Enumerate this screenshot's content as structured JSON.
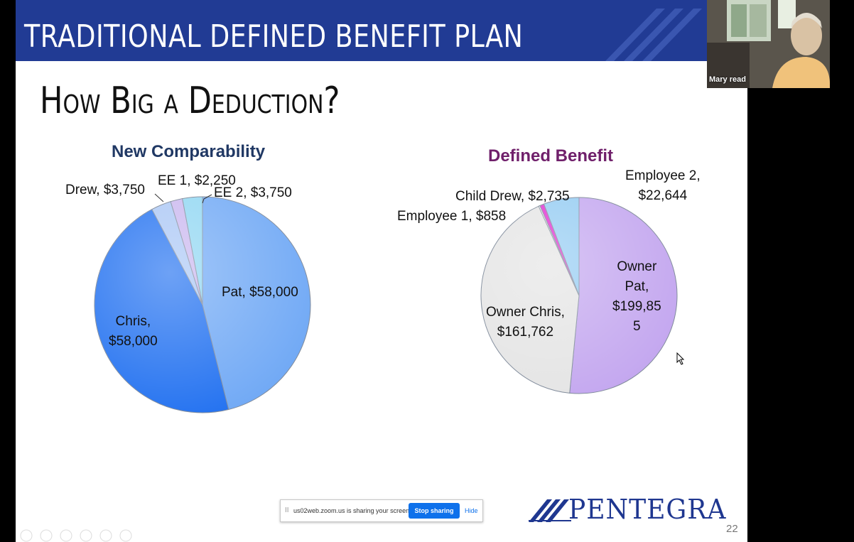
{
  "slide": {
    "title": "TRADITIONAL DEFINED BENEFIT PLAN",
    "subtitle": "How Big a Deduction?",
    "page_number": "22",
    "logo_text": "PENTEGRA"
  },
  "chart_data": [
    {
      "type": "pie",
      "title": "New Comparability",
      "slices": [
        {
          "label": "Pat, $58,000",
          "name": "Pat",
          "value": 58000,
          "color": "#6fa8f5"
        },
        {
          "label": "Chris, $58,000",
          "name": "Chris",
          "value": 58000,
          "color": "#1f6ff0"
        },
        {
          "label": "Drew, $3,750",
          "name": "Drew",
          "value": 3750,
          "color": "#a9c6f5"
        },
        {
          "label": "EE 1, $2,250",
          "name": "EE 1",
          "value": 2250,
          "color": "#c9b6ef"
        },
        {
          "label": "EE 2, $3,750",
          "name": "EE 2",
          "value": 3750,
          "color": "#8fd6f2"
        }
      ]
    },
    {
      "type": "pie",
      "title": "Defined Benefit",
      "slices": [
        {
          "label": "Owner Pat, $199,855",
          "name": "Owner Pat",
          "value": 199855,
          "color": "#c3a6ef"
        },
        {
          "label": "Owner Chris, $161,762",
          "name": "Owner Chris",
          "value": 161762,
          "color": "#e4e4e4"
        },
        {
          "label": "Employee 1, $858",
          "name": "Employee 1",
          "value": 858,
          "color": "#ffffff"
        },
        {
          "label": "Child Drew, $2,735",
          "name": "Child Drew",
          "value": 2735,
          "color": "#e02bd0"
        },
        {
          "label": "Employee 2, $22,644",
          "name": "Employee 2",
          "value": 22644,
          "color": "#93cbf2"
        }
      ]
    }
  ],
  "labels": {
    "nc_pat": "Pat, $58,000",
    "nc_chris_1": "Chris,",
    "nc_chris_2": "$58,000",
    "nc_drew": "Drew, $3,750",
    "nc_ee1": "EE 1, $2,250",
    "nc_ee2": "EE 2, $3,750",
    "db_pat_1": "Owner",
    "db_pat_2": "Pat,",
    "db_pat_3": "$199,85",
    "db_pat_4": "5",
    "db_chris_1": "Owner Chris,",
    "db_chris_2": "$161,762",
    "db_emp1": "Employee 1, $858",
    "db_drew": "Child Drew, $2,735",
    "db_emp2_1": "Employee 2,",
    "db_emp2_2": "$22,644"
  },
  "share_bar": {
    "text": "us02web.zoom.us is sharing your screen.",
    "stop_label": "Stop sharing",
    "hide_label": "Hide",
    "pause_glyph": "II"
  },
  "video": {
    "participant_name": "Mary read"
  },
  "colors": {
    "title_bar": "#213b94",
    "accent_blue": "#1f3790",
    "zoom_blue": "#0e71eb"
  }
}
